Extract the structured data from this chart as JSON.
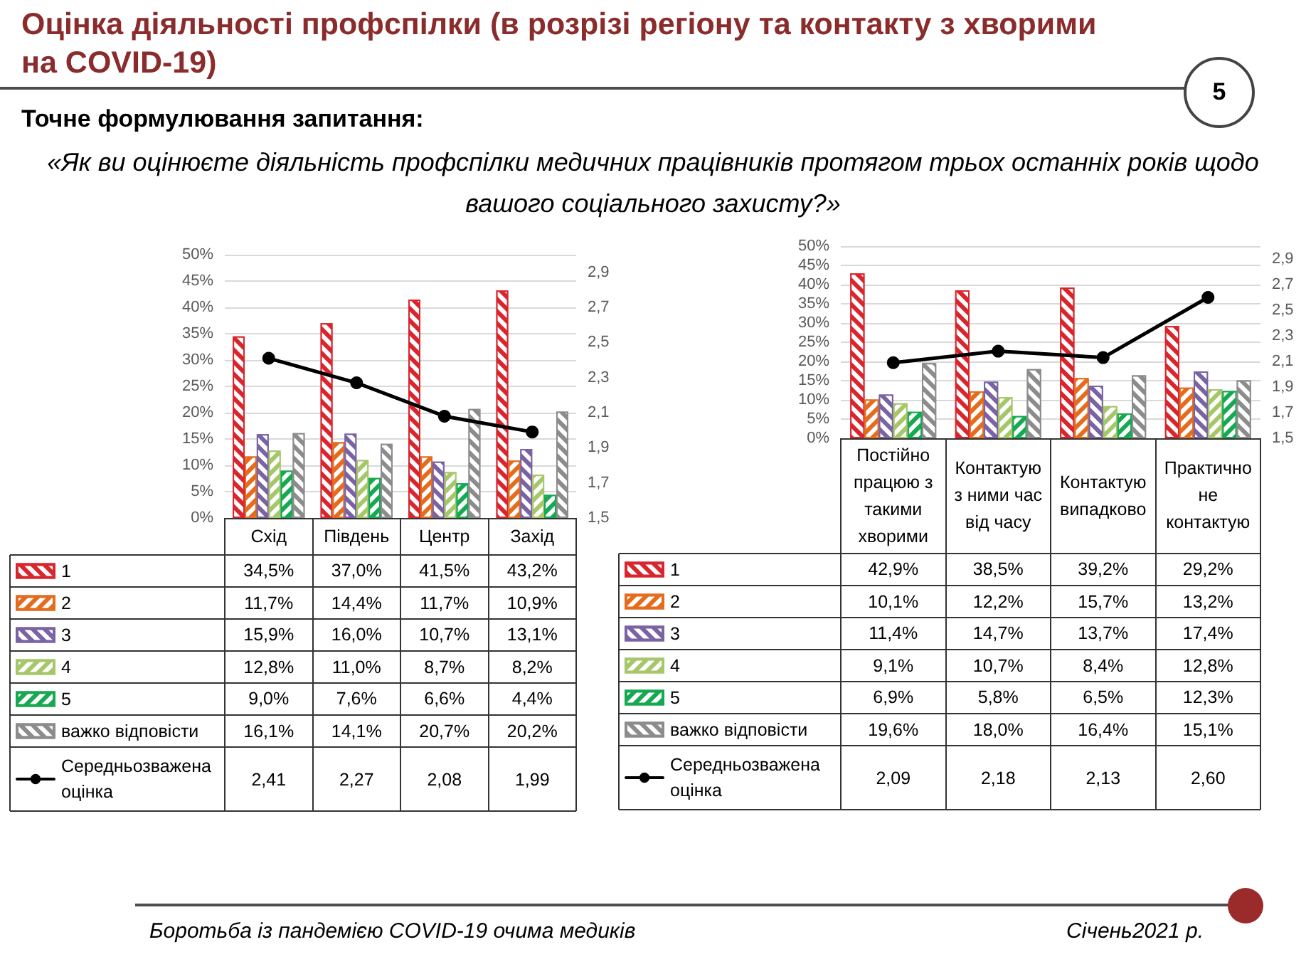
{
  "chart_data": [
    {
      "type": "bar",
      "title": "Оцінка діяльності профспілки (в розрізі регіону та контакту з хворими на COVID-19)",
      "subtitle": "Точне формулювання запитання:",
      "annotations": [
        "«Як ви оцінюєте діяльність профспілки медичних працівників протягом трьох останніх років щодо вашого соціального захисту?»",
        "5",
        "Боротьба із пандемією COVID-19 очима медиків",
        "Січень2021 р."
      ],
      "categories": [
        "Схід",
        "Південь",
        "Центр",
        "Захід"
      ],
      "series": [
        {
          "name": "1",
          "color": "#d9262e",
          "values": [
            34.5,
            37.0,
            41.5,
            43.2
          ],
          "value_labels": [
            "34,5%",
            "37,0%",
            "41,5%",
            "43,2%"
          ]
        },
        {
          "name": "2",
          "color": "#e46c1e",
          "values": [
            11.7,
            14.4,
            11.7,
            10.9
          ],
          "value_labels": [
            "11,7%",
            "14,4%",
            "11,7%",
            "10,9%"
          ]
        },
        {
          "name": "3",
          "color": "#7a63a3",
          "values": [
            15.9,
            16.0,
            10.7,
            13.1
          ],
          "value_labels": [
            "15,9%",
            "16,0%",
            "10,7%",
            "13,1%"
          ]
        },
        {
          "name": "4",
          "color": "#a6c66a",
          "values": [
            12.8,
            11.0,
            8.7,
            8.2
          ],
          "value_labels": [
            "12,8%",
            "11,0%",
            "8,7%",
            "8,2%"
          ]
        },
        {
          "name": "5",
          "color": "#17a852",
          "values": [
            9.0,
            7.6,
            6.6,
            4.4
          ],
          "value_labels": [
            "9,0%",
            "7,6%",
            "6,6%",
            "4,4%"
          ]
        },
        {
          "name": "важко відповісти",
          "color": "#8c8c8c",
          "values": [
            16.1,
            14.1,
            20.7,
            20.2
          ],
          "value_labels": [
            "16,1%",
            "14,1%",
            "20,7%",
            "20,2%"
          ]
        },
        {
          "name": "Середньозважена оцінка",
          "type": "line",
          "axis": "y2",
          "color": "#000000",
          "values": [
            2.41,
            2.27,
            2.08,
            1.99
          ],
          "value_labels": [
            "2,41",
            "2,27",
            "2,08",
            "1,99"
          ]
        }
      ],
      "ylim": [
        0,
        50
      ],
      "yticks": [
        {
          "value": 0,
          "label": "0%"
        },
        {
          "value": 5,
          "label": "5%"
        },
        {
          "value": 10,
          "label": "10%"
        },
        {
          "value": 15,
          "label": "15%"
        },
        {
          "value": 20,
          "label": "20%"
        },
        {
          "value": 25,
          "label": "25%"
        },
        {
          "value": 30,
          "label": "30%"
        },
        {
          "value": 35,
          "label": "35%"
        },
        {
          "value": 40,
          "label": "40%"
        },
        {
          "value": 45,
          "label": "45%"
        },
        {
          "value": 50,
          "label": "50%"
        }
      ],
      "y2lim": [
        1.5,
        3.0
      ],
      "y2ticks": [
        {
          "value": 1.5,
          "label": "1,5"
        },
        {
          "value": 1.7,
          "label": "1,7"
        },
        {
          "value": 1.9,
          "label": "1,9"
        },
        {
          "value": 2.1,
          "label": "2,1"
        },
        {
          "value": 2.3,
          "label": "2,3"
        },
        {
          "value": 2.5,
          "label": "2,5"
        },
        {
          "value": 2.7,
          "label": "2,7"
        },
        {
          "value": 2.9,
          "label": "2,9"
        }
      ],
      "grid": "y",
      "legend": "bottom left",
      "marker": "circle"
    },
    {
      "type": "bar",
      "categories": [
        "Постійно працюю з такими хворими",
        "Контактую з ними час від часу",
        "Контактую випадково",
        "Практично не контактую"
      ],
      "series": [
        {
          "name": "1",
          "color": "#d9262e",
          "values": [
            42.9,
            38.5,
            39.2,
            29.2
          ],
          "value_labels": [
            "42,9%",
            "38,5%",
            "39,2%",
            "29,2%"
          ]
        },
        {
          "name": "2",
          "color": "#e46c1e",
          "values": [
            10.1,
            12.2,
            15.7,
            13.2
          ],
          "value_labels": [
            "10,1%",
            "12,2%",
            "15,7%",
            "13,2%"
          ]
        },
        {
          "name": "3",
          "color": "#7a63a3",
          "values": [
            11.4,
            14.7,
            13.7,
            17.4
          ],
          "value_labels": [
            "11,4%",
            "14,7%",
            "13,7%",
            "17,4%"
          ]
        },
        {
          "name": "4",
          "color": "#a6c66a",
          "values": [
            9.1,
            10.7,
            8.4,
            12.8
          ],
          "value_labels": [
            "9,1%",
            "10,7%",
            "8,4%",
            "12,8%"
          ]
        },
        {
          "name": "5",
          "color": "#17a852",
          "values": [
            6.9,
            5.8,
            6.5,
            12.3
          ],
          "value_labels": [
            "6,9%",
            "5,8%",
            "6,5%",
            "12,3%"
          ]
        },
        {
          "name": "важко відповісти",
          "color": "#8c8c8c",
          "values": [
            19.6,
            18.0,
            16.4,
            15.1
          ],
          "value_labels": [
            "19,6%",
            "18,0%",
            "16,4%",
            "15,1%"
          ]
        },
        {
          "name": "Середньозважена оцінка",
          "type": "line",
          "axis": "y2",
          "color": "#000000",
          "values": [
            2.09,
            2.18,
            2.13,
            2.6
          ],
          "value_labels": [
            "2,09",
            "2,18",
            "2,13",
            "2,60"
          ]
        }
      ],
      "ylim": [
        0,
        50
      ],
      "yticks": [
        {
          "value": 0,
          "label": "0%"
        },
        {
          "value": 5,
          "label": "5%"
        },
        {
          "value": 10,
          "label": "10%"
        },
        {
          "value": 15,
          "label": "15%"
        },
        {
          "value": 20,
          "label": "20%"
        },
        {
          "value": 25,
          "label": "25%"
        },
        {
          "value": 30,
          "label": "30%"
        },
        {
          "value": 35,
          "label": "35%"
        },
        {
          "value": 40,
          "label": "40%"
        },
        {
          "value": 45,
          "label": "45%"
        },
        {
          "value": 50,
          "label": "50%"
        }
      ],
      "y2lim": [
        1.5,
        3.0
      ],
      "y2ticks": [
        {
          "value": 1.5,
          "label": "1,5"
        },
        {
          "value": 1.7,
          "label": "1,7"
        },
        {
          "value": 1.9,
          "label": "1,9"
        },
        {
          "value": 2.1,
          "label": "2,1"
        },
        {
          "value": 2.3,
          "label": "2,3"
        },
        {
          "value": 2.5,
          "label": "2,5"
        },
        {
          "value": 2.7,
          "label": "2,7"
        },
        {
          "value": 2.9,
          "label": "2,9"
        }
      ],
      "grid": "y",
      "legend": "bottom left",
      "marker": "circle"
    }
  ]
}
